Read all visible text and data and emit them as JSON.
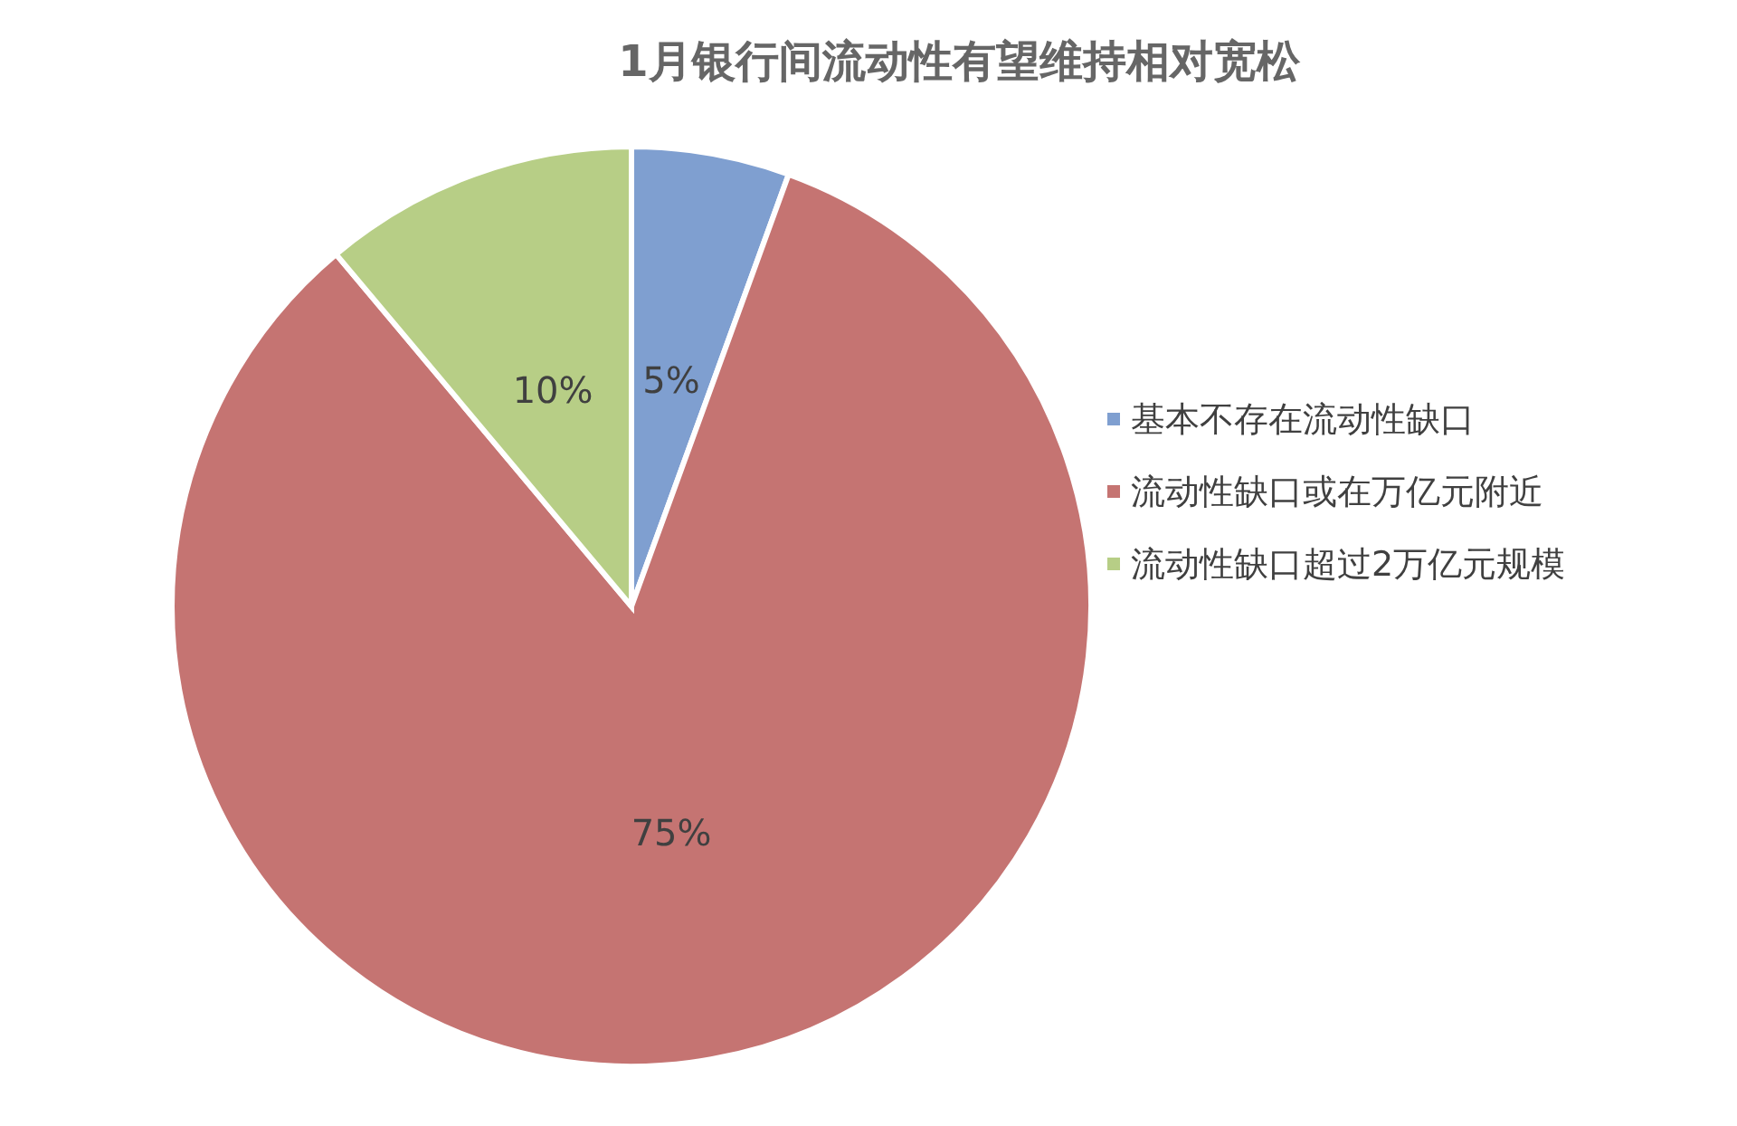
{
  "chart_data": {
    "type": "pie",
    "title": "1月银行间流动性有望维持相对宽松",
    "categories": [
      "基本不存在流动性缺口",
      "流动性缺口或在万亿元附近",
      "流动性缺口超过2万亿元规模"
    ],
    "values": [
      5,
      75,
      10
    ],
    "value_labels": [
      "5%",
      "75%",
      "10%"
    ],
    "colors": [
      "#7f9fd0",
      "#c57472",
      "#b7ce86"
    ],
    "legend": "right"
  }
}
